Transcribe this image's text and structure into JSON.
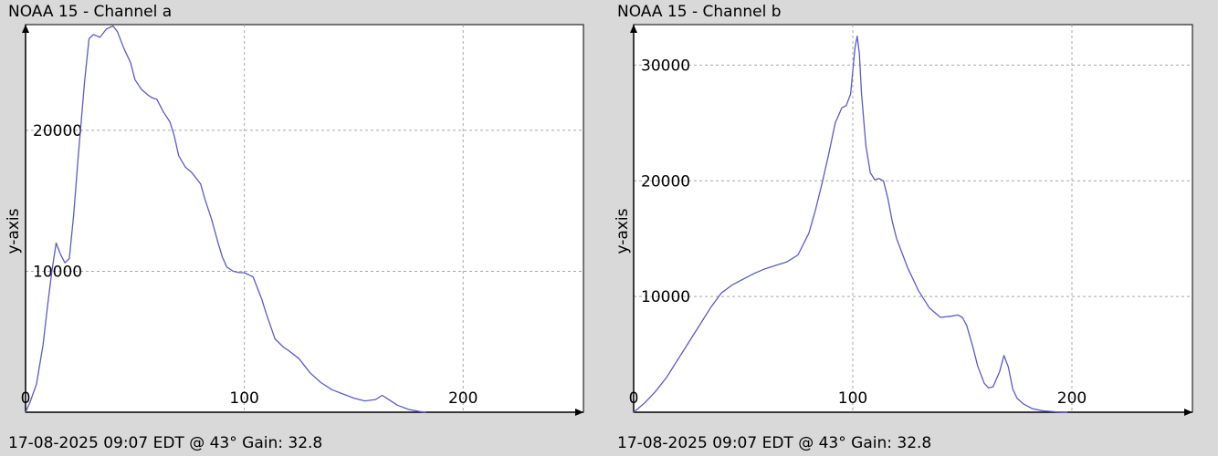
{
  "colors": {
    "background": "#d9d9d9",
    "plot_bg": "#ffffff",
    "line": "#5b5bc8",
    "grid": "#a8a8a8"
  },
  "panels": [
    {
      "title": "NOAA 15 - Channel a",
      "footer": "17-08-2025 09:07 EDT @ 43° Gain: 32.8",
      "chart_data": {
        "type": "line",
        "title": "NOAA 15 - Channel a",
        "xlabel": "",
        "ylabel": "y-axis",
        "xlim": [
          0,
          255
        ],
        "ylim": [
          0,
          27500
        ],
        "x_ticks": [
          0,
          100,
          200
        ],
        "y_ticks": [
          10000,
          20000
        ],
        "grid": true,
        "x": [
          0,
          2,
          5,
          8,
          10,
          12,
          14,
          16,
          18,
          20,
          22,
          24,
          27,
          29,
          31,
          34,
          37,
          40,
          42,
          45,
          48,
          50,
          53,
          56,
          58,
          60,
          63,
          66,
          68,
          70,
          73,
          76,
          80,
          82,
          85,
          88,
          90,
          92,
          95,
          98,
          100,
          104,
          108,
          110,
          114,
          118,
          120,
          125,
          130,
          135,
          140,
          145,
          150,
          155,
          160,
          163,
          166,
          170,
          175,
          180,
          183
        ],
        "y": [
          0,
          700,
          2000,
          4800,
          7500,
          10000,
          12000,
          11200,
          10600,
          10900,
          14000,
          18000,
          23500,
          26500,
          26800,
          26600,
          27200,
          27400,
          27000,
          25800,
          24800,
          23600,
          22900,
          22500,
          22300,
          22200,
          21300,
          20600,
          19600,
          18200,
          17400,
          17000,
          16200,
          15100,
          13700,
          12000,
          11000,
          10300,
          10000,
          9900,
          9900,
          9600,
          8000,
          7000,
          5200,
          4600,
          4400,
          3800,
          2800,
          2100,
          1600,
          1300,
          1000,
          800,
          900,
          1200,
          900,
          500,
          200,
          50,
          0
        ]
      }
    },
    {
      "title": "NOAA 15 - Channel b",
      "footer": "17-08-2025 09:07 EDT @ 43° Gain: 32.8",
      "chart_data": {
        "type": "line",
        "title": "NOAA 15 - Channel b",
        "xlabel": "",
        "ylabel": "y-axis",
        "xlim": [
          0,
          255
        ],
        "ylim": [
          0,
          33500
        ],
        "x_ticks": [
          0,
          100,
          200
        ],
        "y_ticks": [
          10000,
          20000,
          30000
        ],
        "grid": true,
        "x": [
          0,
          5,
          10,
          15,
          20,
          25,
          30,
          35,
          40,
          45,
          50,
          55,
          60,
          65,
          70,
          75,
          80,
          83,
          86,
          89,
          92,
          95,
          97,
          99,
          100,
          101,
          102,
          103,
          104,
          106,
          108,
          110,
          112,
          114,
          116,
          118,
          120,
          125,
          130,
          135,
          140,
          145,
          148,
          150,
          152,
          155,
          157,
          160,
          162,
          164,
          167,
          169,
          171,
          173,
          175,
          178,
          182,
          187,
          193,
          198
        ],
        "y": [
          0,
          800,
          1800,
          3000,
          4500,
          6000,
          7500,
          9000,
          10300,
          11000,
          11500,
          12000,
          12400,
          12700,
          13000,
          13600,
          15500,
          17500,
          19800,
          22300,
          25000,
          26300,
          26500,
          27500,
          29500,
          31500,
          32500,
          31000,
          27500,
          23000,
          20700,
          20100,
          20200,
          20000,
          18500,
          16500,
          15000,
          12500,
          10500,
          9000,
          8200,
          8300,
          8400,
          8200,
          7500,
          5500,
          4000,
          2500,
          2100,
          2200,
          3500,
          4900,
          3900,
          2000,
          1200,
          700,
          300,
          120,
          30,
          0
        ]
      }
    }
  ]
}
